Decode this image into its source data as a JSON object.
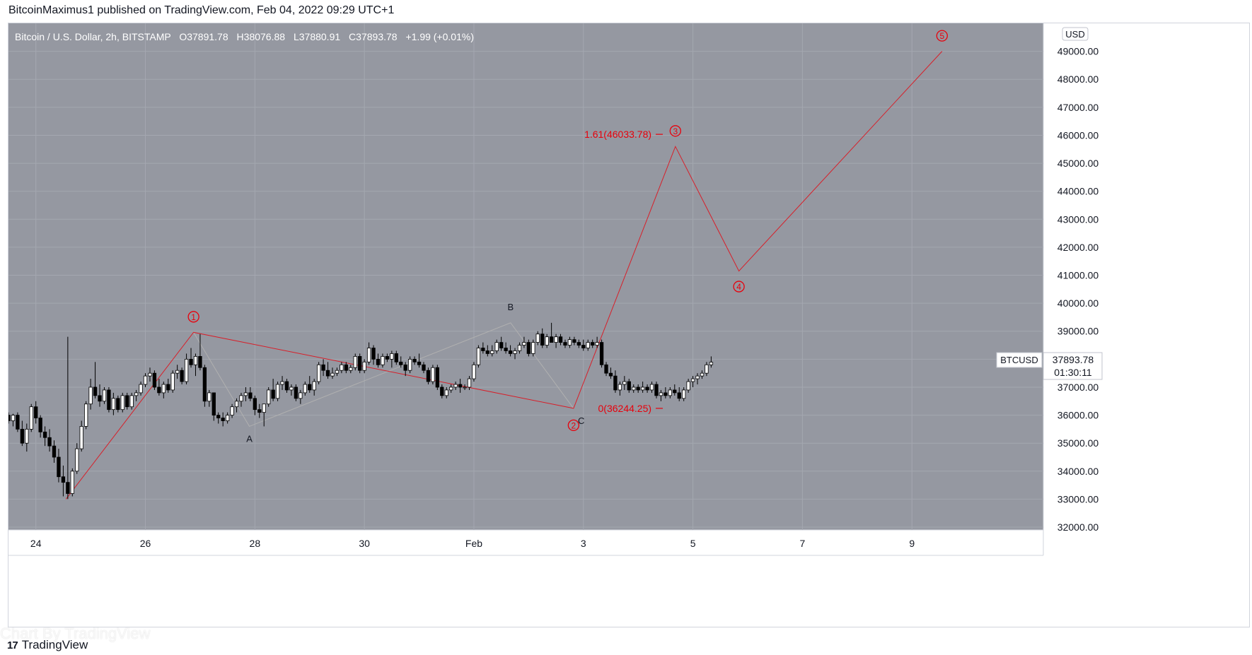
{
  "publisher": "BitcoinMaximus1 published on TradingView.com, Feb 04, 2022 09:29 UTC+1",
  "footer": {
    "brand": "TradingView",
    "watermark": "Chart By TradingView"
  },
  "colors": {
    "plot_bg": "#9598a1",
    "scale_bg": "#ffffff",
    "grid": "#a4a7b0",
    "wave_red": "#e8000b",
    "abc_line": "#b0b0b0",
    "candle_up": "#ffffff",
    "candle_down": "#000000"
  },
  "header": {
    "symbol": "Bitcoin / U.S. Dollar, 2h, BITSTAMP",
    "o_label": "O",
    "o_value": "37891.78",
    "h_label": "H",
    "h_value": "38076.88",
    "l_label": "L",
    "l_value": "37880.91",
    "c_label": "C",
    "c_value": "37893.78",
    "change": "+1.99 (+0.01%)"
  },
  "price_scale": {
    "currency": "USD",
    "ticks": [
      "32000.00",
      "33000.00",
      "34000.00",
      "35000.00",
      "36000.00",
      "37000.00",
      "38000.00",
      "39000.00",
      "40000.00",
      "41000.00",
      "42000.00",
      "43000.00",
      "44000.00",
      "45000.00",
      "46000.00",
      "47000.00",
      "48000.00",
      "49000.00"
    ],
    "last_price_label": "BTCUSD",
    "last_price": "37893.78",
    "countdown": "01:30:11"
  },
  "time_scale": {
    "ticks": [
      {
        "label": "24",
        "day": 24
      },
      {
        "label": "26",
        "day": 26
      },
      {
        "label": "28",
        "day": 28
      },
      {
        "label": "30",
        "day": 30
      },
      {
        "label": "Feb",
        "day": 32
      },
      {
        "label": "3",
        "day": 34
      },
      {
        "label": "5",
        "day": 36
      },
      {
        "label": "7",
        "day": 38
      },
      {
        "label": "9",
        "day": 40
      }
    ]
  },
  "chart_data": {
    "type": "candlestick",
    "title": "Bitcoin / U.S. Dollar, 2h, BITSTAMP",
    "x_unit": "day (Jan 2022; Feb 1 = 32)",
    "ylim": [
      31900,
      50000
    ],
    "xlim": [
      23.5,
      42.4
    ],
    "candles_start_day": 23.5,
    "candle_interval_days": 0.0833333,
    "candles": [
      [
        36000,
        36100,
        35700,
        35800
      ],
      [
        35800,
        36050,
        35600,
        36000
      ],
      [
        36000,
        36100,
        35400,
        35500
      ],
      [
        35500,
        35800,
        34900,
        35000
      ],
      [
        35000,
        35700,
        34700,
        35500
      ],
      [
        35500,
        36400,
        35400,
        36300
      ],
      [
        36300,
        36500,
        35700,
        35900
      ],
      [
        35900,
        36000,
        35200,
        35400
      ],
      [
        35400,
        35600,
        34900,
        35200
      ],
      [
        35200,
        35500,
        34700,
        34900
      ],
      [
        34900,
        35100,
        34300,
        34500
      ],
      [
        34500,
        34800,
        33600,
        33800
      ],
      [
        33800,
        34200,
        33100,
        33600
      ],
      [
        33600,
        38800,
        33000,
        33200
      ],
      [
        33200,
        34100,
        33100,
        34000
      ],
      [
        34000,
        35000,
        33900,
        34800
      ],
      [
        34800,
        35800,
        34700,
        35600
      ],
      [
        35600,
        36500,
        35500,
        36400
      ],
      [
        36400,
        37300,
        36200,
        37000
      ],
      [
        37000,
        37900,
        36600,
        36700
      ],
      [
        36700,
        37100,
        36300,
        36500
      ],
      [
        36500,
        37000,
        36400,
        36900
      ],
      [
        36900,
        37000,
        36100,
        36200
      ],
      [
        36200,
        36800,
        36000,
        36600
      ],
      [
        36600,
        36700,
        36100,
        36200
      ],
      [
        36200,
        36800,
        36100,
        36700
      ],
      [
        36700,
        36800,
        36200,
        36300
      ],
      [
        36300,
        36800,
        36200,
        36700
      ],
      [
        36700,
        36900,
        36500,
        36800
      ],
      [
        36800,
        37200,
        36700,
        37100
      ],
      [
        37100,
        37500,
        37000,
        37400
      ],
      [
        37400,
        37700,
        37200,
        37500
      ],
      [
        37500,
        37600,
        36900,
        37000
      ],
      [
        37000,
        37300,
        36700,
        36800
      ],
      [
        36800,
        37200,
        36600,
        37100
      ],
      [
        37100,
        37300,
        36800,
        36900
      ],
      [
        36900,
        37600,
        36800,
        37500
      ],
      [
        37500,
        37800,
        37300,
        37600
      ],
      [
        37600,
        37700,
        37100,
        37200
      ],
      [
        37200,
        38200,
        37100,
        38000
      ],
      [
        38000,
        38400,
        37700,
        37800
      ],
      [
        37800,
        38200,
        37400,
        38100
      ],
      [
        38100,
        38900,
        37600,
        37700
      ],
      [
        37700,
        37800,
        36300,
        36500
      ],
      [
        36500,
        36900,
        36300,
        36800
      ],
      [
        36800,
        36800,
        35800,
        36000
      ],
      [
        36000,
        36100,
        35700,
        35900
      ],
      [
        35900,
        36100,
        35600,
        35800
      ],
      [
        35800,
        36100,
        35700,
        36000
      ],
      [
        36000,
        36400,
        35900,
        36300
      ],
      [
        36300,
        36600,
        36100,
        36500
      ],
      [
        36500,
        36800,
        36300,
        36700
      ],
      [
        36700,
        37000,
        36500,
        36800
      ],
      [
        36800,
        37000,
        36500,
        36600
      ],
      [
        36600,
        36700,
        36000,
        36200
      ],
      [
        36200,
        36400,
        35900,
        36100
      ],
      [
        36100,
        36300,
        35600,
        36400
      ],
      [
        36400,
        37000,
        36300,
        36900
      ],
      [
        36900,
        37300,
        36500,
        36600
      ],
      [
        36600,
        37200,
        36500,
        37100
      ],
      [
        37100,
        37400,
        36900,
        37200
      ],
      [
        37200,
        37300,
        36800,
        36900
      ],
      [
        36900,
        37100,
        36700,
        37000
      ],
      [
        37000,
        37100,
        36500,
        36600
      ],
      [
        36600,
        36900,
        36400,
        36800
      ],
      [
        36800,
        37200,
        36700,
        37100
      ],
      [
        37100,
        37400,
        36800,
        36900
      ],
      [
        36900,
        37300,
        36700,
        37200
      ],
      [
        37200,
        37900,
        37100,
        37800
      ],
      [
        37800,
        38000,
        37400,
        37600
      ],
      [
        37600,
        37900,
        37300,
        37400
      ],
      [
        37400,
        37700,
        37300,
        37500
      ],
      [
        37500,
        37700,
        37400,
        37600
      ],
      [
        37600,
        37900,
        37500,
        37800
      ],
      [
        37800,
        37900,
        37500,
        37600
      ],
      [
        37600,
        37800,
        37500,
        37700
      ],
      [
        37700,
        38200,
        37600,
        38100
      ],
      [
        38100,
        38200,
        37500,
        37600
      ],
      [
        37600,
        38000,
        37500,
        37900
      ],
      [
        37900,
        38600,
        37800,
        38400
      ],
      [
        38400,
        38500,
        37800,
        38000
      ],
      [
        38000,
        38200,
        37700,
        37800
      ],
      [
        37800,
        38200,
        37700,
        38100
      ],
      [
        38100,
        38200,
        37900,
        38000
      ],
      [
        38000,
        38300,
        37700,
        38200
      ],
      [
        38200,
        38300,
        37800,
        37900
      ],
      [
        37900,
        38100,
        37700,
        37800
      ],
      [
        37800,
        37900,
        37400,
        37600
      ],
      [
        37600,
        38100,
        37500,
        38000
      ],
      [
        38000,
        38100,
        37800,
        37900
      ],
      [
        37900,
        38200,
        37700,
        37800
      ],
      [
        37800,
        37900,
        37500,
        37600
      ],
      [
        37600,
        37700,
        37100,
        37200
      ],
      [
        37200,
        37800,
        37100,
        37700
      ],
      [
        37700,
        37800,
        36900,
        37000
      ],
      [
        37000,
        37100,
        36600,
        36700
      ],
      [
        36700,
        37000,
        36600,
        36900
      ],
      [
        36900,
        37100,
        36800,
        37000
      ],
      [
        37000,
        37200,
        36900,
        37100
      ],
      [
        37100,
        37300,
        36800,
        37000
      ],
      [
        37000,
        37100,
        36900,
        37000
      ],
      [
        37000,
        37400,
        36900,
        37300
      ],
      [
        37300,
        37900,
        37200,
        37800
      ],
      [
        37800,
        38500,
        37700,
        38400
      ],
      [
        38400,
        38600,
        38200,
        38300
      ],
      [
        38300,
        38500,
        38100,
        38200
      ],
      [
        38200,
        38500,
        38100,
        38300
      ],
      [
        38300,
        38700,
        38200,
        38600
      ],
      [
        38600,
        38800,
        38300,
        38400
      ],
      [
        38400,
        38600,
        38200,
        38300
      ],
      [
        38300,
        38500,
        38100,
        38200
      ],
      [
        38200,
        38400,
        38000,
        38300
      ],
      [
        38300,
        38600,
        38200,
        38500
      ],
      [
        38500,
        38800,
        38400,
        38600
      ],
      [
        38600,
        38700,
        38100,
        38200
      ],
      [
        38200,
        38700,
        38100,
        38600
      ],
      [
        38600,
        39000,
        38500,
        38900
      ],
      [
        38900,
        39100,
        38400,
        38500
      ],
      [
        38500,
        38900,
        38400,
        38800
      ],
      [
        38800,
        39300,
        38700,
        38600
      ],
      [
        38600,
        38900,
        38400,
        38800
      ],
      [
        38800,
        38900,
        38500,
        38600
      ],
      [
        38600,
        38700,
        38400,
        38500
      ],
      [
        38500,
        38800,
        38400,
        38700
      ],
      [
        38700,
        38800,
        38500,
        38600
      ],
      [
        38600,
        38700,
        38400,
        38500
      ],
      [
        38500,
        38700,
        38300,
        38400
      ],
      [
        38400,
        38700,
        38300,
        38600
      ],
      [
        38600,
        38700,
        38400,
        38500
      ],
      [
        38500,
        38800,
        38400,
        38600
      ],
      [
        38600,
        38700,
        37700,
        37800
      ],
      [
        37800,
        37900,
        37400,
        37500
      ],
      [
        37500,
        37700,
        37300,
        37400
      ],
      [
        37400,
        37600,
        36800,
        36900
      ],
      [
        36900,
        37200,
        36700,
        37100
      ],
      [
        37100,
        37400,
        36900,
        37200
      ],
      [
        37200,
        37300,
        36800,
        36900
      ],
      [
        36900,
        37100,
        36800,
        37000
      ],
      [
        37000,
        37100,
        36800,
        36900
      ],
      [
        36900,
        37200,
        36800,
        37000
      ],
      [
        37000,
        37100,
        36800,
        36900
      ],
      [
        36900,
        37200,
        36800,
        37100
      ],
      [
        37100,
        37200,
        36600,
        36700
      ],
      [
        36700,
        36900,
        36500,
        36800
      ],
      [
        36800,
        37000,
        36600,
        36700
      ],
      [
        36700,
        37000,
        36600,
        36900
      ],
      [
        36900,
        37100,
        36700,
        36800
      ],
      [
        36800,
        37000,
        36500,
        36600
      ],
      [
        36600,
        37000,
        36500,
        36900
      ],
      [
        36900,
        37300,
        36800,
        37200
      ],
      [
        37200,
        37400,
        37000,
        37300
      ],
      [
        37300,
        37500,
        37100,
        37400
      ],
      [
        37400,
        37600,
        37300,
        37500
      ],
      [
        37500,
        37900,
        37400,
        37800
      ],
      [
        37800,
        38100,
        37700,
        37893.78
      ]
    ],
    "wave_labels": [
      {
        "label": "1",
        "x": 26.88,
        "y": 38960
      },
      {
        "label": "2",
        "x": 33.82,
        "y": 36244.25
      },
      {
        "label": "3",
        "x": 35.68,
        "y": 45600
      },
      {
        "label": "4",
        "x": 36.84,
        "y": 41150
      },
      {
        "label": "5",
        "x": 40.55,
        "y": 49000
      }
    ],
    "wave_path": [
      {
        "x": 24.55,
        "y": 33000
      },
      {
        "x": 26.88,
        "y": 38960
      },
      {
        "x": 33.82,
        "y": 36244.25
      },
      {
        "x": 35.68,
        "y": 45600
      },
      {
        "x": 36.84,
        "y": 41150
      },
      {
        "x": 40.55,
        "y": 49000
      }
    ],
    "abc_labels": [
      {
        "label": "A",
        "x": 27.9,
        "y": 35600
      },
      {
        "label": "B",
        "x": 32.67,
        "y": 39300
      },
      {
        "label": "C",
        "x": 33.96,
        "y": 36244.25
      }
    ],
    "abc_path": [
      {
        "x": 26.88,
        "y": 38960
      },
      {
        "x": 27.9,
        "y": 35600
      },
      {
        "x": 32.67,
        "y": 39300
      },
      {
        "x": 33.82,
        "y": 36244.25
      }
    ],
    "fib_levels": [
      {
        "label": "1.61(46033.78)",
        "value": 46033.78
      },
      {
        "label": "0(36244.25)",
        "value": 36244.25
      }
    ],
    "fib_x_range": [
      33.9,
      35.45
    ]
  }
}
